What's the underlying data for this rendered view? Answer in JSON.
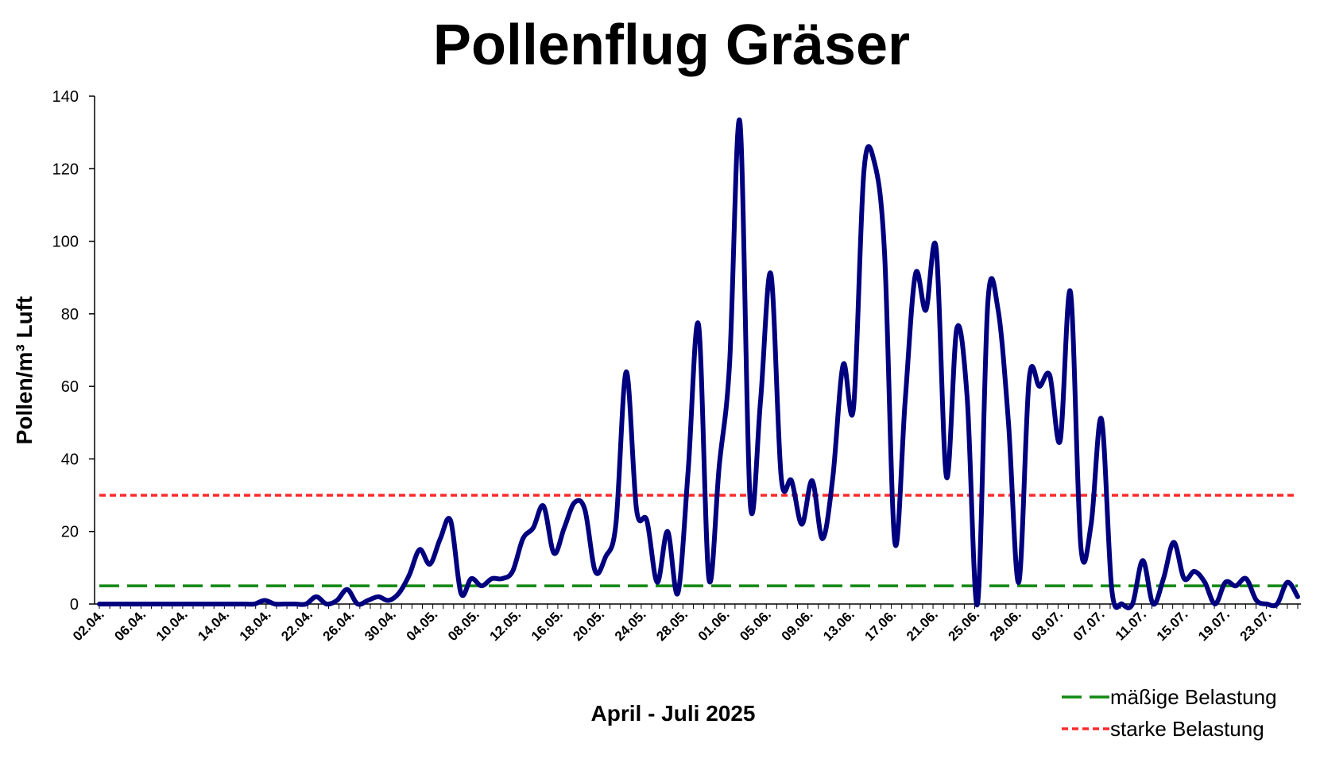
{
  "chart_data": {
    "type": "line",
    "title": "Pollenflug Gräser",
    "xlabel": "April - Juli 2025",
    "ylabel": "Pollen/m³ Luft",
    "ylim": [
      0,
      140
    ],
    "yticks": [
      "0",
      "20",
      "40",
      "60",
      "80",
      "100",
      "120",
      "140"
    ],
    "x_start_date": "2025-04-02",
    "x_end_date": "2025-07-26",
    "xtick_labels": [
      "02.04.",
      "06.04.",
      "10.04.",
      "14.04.",
      "18.04.",
      "22.04.",
      "26.04.",
      "30.04.",
      "04.05.",
      "08.05.",
      "12.05.",
      "16.05.",
      "20.05.",
      "24.05.",
      "28.05.",
      "01.06.",
      "05.06.",
      "09.06.",
      "13.06.",
      "17.06.",
      "21.06.",
      "25.06.",
      "29.06.",
      "03.07.",
      "07.07.",
      "11.07.",
      "15.07.",
      "19.07.",
      "23.07."
    ],
    "grid": false,
    "legend_position": "bottom-right",
    "series": [
      {
        "name": "",
        "color": "#00007f",
        "values": [
          0,
          0,
          0,
          0,
          0,
          0,
          0,
          0,
          0,
          0,
          0,
          0,
          0,
          0,
          0,
          0,
          1,
          0,
          0,
          0,
          0,
          2,
          0,
          1,
          4,
          0,
          1,
          2,
          1,
          3,
          8,
          15,
          11,
          18,
          23,
          3,
          7,
          5,
          7,
          7,
          9,
          18,
          21,
          27,
          14,
          21,
          28,
          26,
          9,
          13,
          22,
          64,
          26,
          23,
          6,
          20,
          3,
          37,
          77,
          7,
          38,
          66,
          133,
          28,
          56,
          91,
          35,
          34,
          22,
          34,
          18,
          35,
          66,
          54,
          119,
          122,
          97,
          17,
          56,
          91,
          81,
          98,
          35,
          76,
          57,
          0,
          83,
          81,
          50,
          6,
          62,
          60,
          63,
          45,
          86,
          16,
          22,
          51,
          4,
          0,
          0,
          12,
          0,
          7,
          17,
          7,
          9,
          6,
          0,
          6,
          5,
          7,
          1,
          0,
          0,
          6,
          2
        ]
      },
      {
        "name": "mäßige Belastung",
        "color": "#118811",
        "constant": 5
      },
      {
        "name": "starke Belastung",
        "color": "#ff2a2a",
        "constant": 30
      }
    ]
  }
}
